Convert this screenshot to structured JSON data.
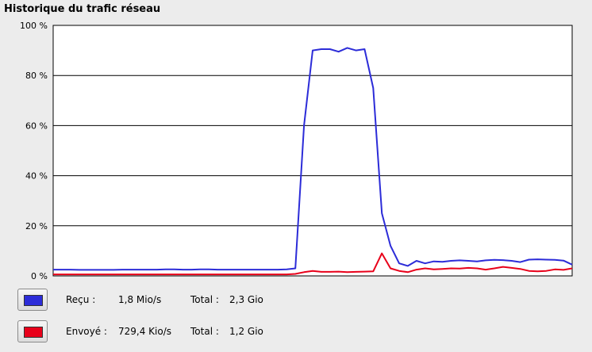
{
  "title": "Historique du trafic réseau",
  "chart_data": {
    "type": "line",
    "title": "Historique du trafic réseau",
    "ylim": [
      0,
      100
    ],
    "yticks": [
      "100 %",
      "80 %",
      "60 %",
      "40 %",
      "20 %",
      "0 %"
    ],
    "ytick_values": [
      100,
      80,
      60,
      40,
      20,
      0
    ],
    "x": [
      0,
      2,
      4,
      6,
      8,
      10,
      12,
      14,
      16,
      18,
      20,
      22,
      24,
      26,
      28,
      30,
      32,
      34,
      36,
      38,
      40,
      42,
      44,
      46,
      48,
      50,
      52,
      54,
      56,
      58,
      60,
      62,
      64,
      66,
      68,
      70,
      72,
      74,
      76,
      78,
      80,
      82,
      84,
      86,
      88,
      90,
      92,
      94,
      96,
      98,
      100,
      102,
      104,
      106,
      108,
      110,
      112,
      114,
      116,
      118,
      120
    ],
    "series": [
      {
        "name": "Reçu",
        "color": "#2c2cd8",
        "values": [
          2.5,
          2.5,
          2.5,
          2.4,
          2.4,
          2.4,
          2.4,
          2.4,
          2.5,
          2.5,
          2.5,
          2.5,
          2.5,
          2.6,
          2.6,
          2.5,
          2.5,
          2.6,
          2.6,
          2.5,
          2.5,
          2.5,
          2.5,
          2.5,
          2.5,
          2.5,
          2.5,
          2.6,
          3,
          60,
          90,
          90.5,
          90.5,
          89.5,
          91,
          90,
          90.5,
          75,
          25,
          12,
          5,
          4,
          6,
          5,
          5.8,
          5.6,
          6,
          6.2,
          6,
          5.8,
          6.2,
          6.4,
          6.3,
          6,
          5.5,
          6.5,
          6.6,
          6.5,
          6.4,
          6.1,
          4.5
        ]
      },
      {
        "name": "Envoyé",
        "color": "#e8001a",
        "values": [
          0.6,
          0.6,
          0.6,
          0.6,
          0.6,
          0.6,
          0.6,
          0.6,
          0.6,
          0.6,
          0.6,
          0.6,
          0.6,
          0.6,
          0.6,
          0.6,
          0.6,
          0.6,
          0.6,
          0.6,
          0.6,
          0.6,
          0.6,
          0.6,
          0.6,
          0.6,
          0.6,
          0.6,
          0.8,
          1.5,
          2,
          1.6,
          1.6,
          1.7,
          1.5,
          1.6,
          1.7,
          1.8,
          9,
          3,
          2,
          1.5,
          2.5,
          3,
          2.6,
          2.8,
          3,
          2.9,
          3.2,
          3,
          2.5,
          3,
          3.6,
          3.2,
          2.8,
          2,
          1.8,
          2,
          2.6,
          2.4,
          3
        ]
      }
    ]
  },
  "legend": [
    {
      "series": "Reçu",
      "label": "Reçu :",
      "rate": "1,8 Mio/s",
      "total_label": "Total :",
      "total": "2,3 Gio",
      "color": "#2c2cd8"
    },
    {
      "series": "Envoyé",
      "label": "Envoyé :",
      "rate": "729,4 Kio/s",
      "total_label": "Total :",
      "total": "1,2 Gio",
      "color": "#e8001a"
    }
  ]
}
